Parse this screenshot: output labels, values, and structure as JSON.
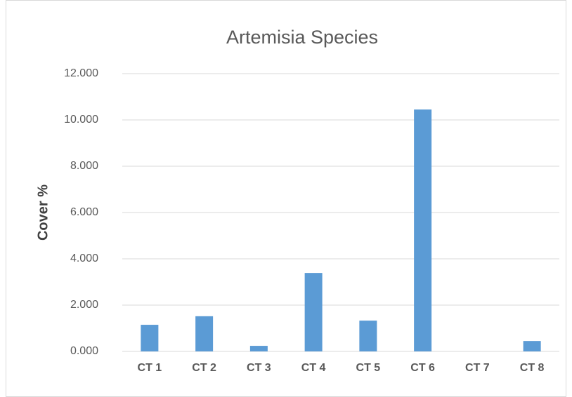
{
  "chart_data": {
    "type": "bar",
    "title": "Artemisia Species",
    "y_label": "Cover %",
    "categories": [
      "CT 1",
      "CT 2",
      "CT 3",
      "CT 4",
      "CT 5",
      "CT 6",
      "CT 7",
      "CT 8"
    ],
    "values": [
      1.15,
      1.52,
      0.24,
      3.39,
      1.33,
      10.45,
      0,
      0.45
    ],
    "color": "#5b9bd5",
    "ylim": [
      0,
      12
    ],
    "yticks": [
      {
        "value": 0,
        "label": "0.000"
      },
      {
        "value": 2,
        "label": "2.000"
      },
      {
        "value": 4,
        "label": "4.000"
      },
      {
        "value": 6,
        "label": "6.000"
      },
      {
        "value": 8,
        "label": "8.000"
      },
      {
        "value": 10,
        "label": "10.000"
      },
      {
        "value": 12,
        "label": "12.000"
      }
    ],
    "grid": true
  }
}
